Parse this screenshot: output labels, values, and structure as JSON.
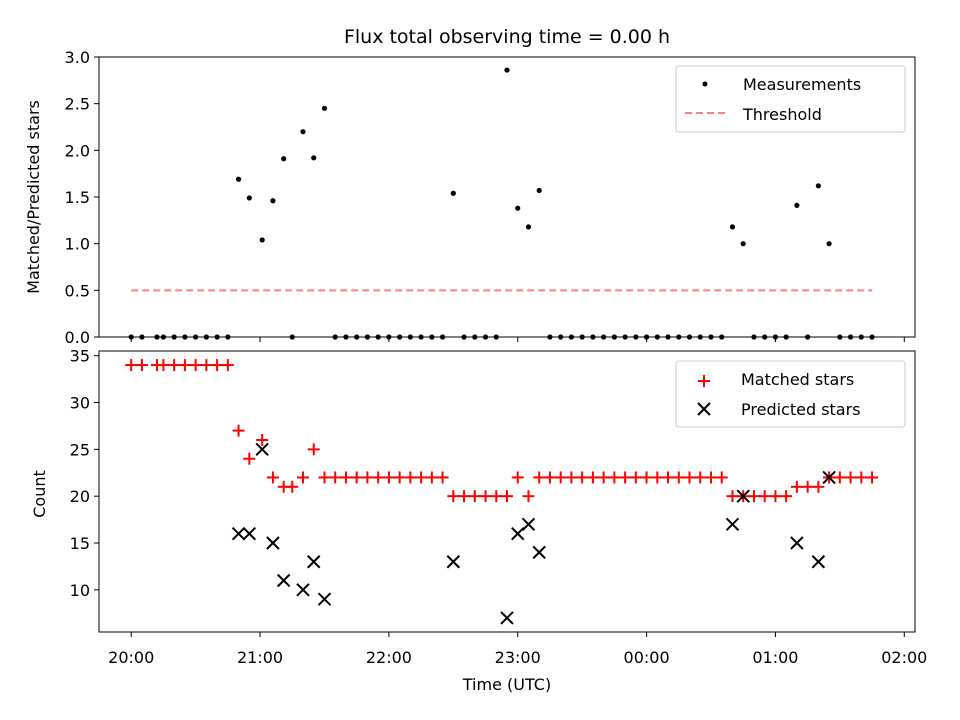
{
  "chart_data": [
    {
      "type": "scatter",
      "title": "Flux total observing time = 0.00 h",
      "xlabel": "",
      "ylabel": "Matched/Predicted stars",
      "ylim": [
        0,
        3.0
      ],
      "xlim": [
        "19:45",
        "02:05"
      ],
      "yticks": [
        "0.0",
        "0.5",
        "1.0",
        "1.5",
        "2.0",
        "2.5",
        "3.0"
      ],
      "legend_position": "top-right",
      "series": [
        {
          "name": "Measurements",
          "color": "#000000",
          "marker": "dot",
          "points": [
            [
              "20:00",
              0
            ],
            [
              "20:05",
              0
            ],
            [
              "20:12",
              0
            ],
            [
              "20:15",
              0
            ],
            [
              "20:20",
              0
            ],
            [
              "20:25",
              0
            ],
            [
              "20:30",
              0
            ],
            [
              "20:35",
              0
            ],
            [
              "20:40",
              0
            ],
            [
              "20:45",
              0
            ],
            [
              "20:50",
              1.69
            ],
            [
              "20:55",
              1.49
            ],
            [
              "21:01",
              1.04
            ],
            [
              "21:06",
              1.46
            ],
            [
              "21:11",
              1.91
            ],
            [
              "21:15",
              0
            ],
            [
              "21:20",
              2.2
            ],
            [
              "21:25",
              1.92
            ],
            [
              "21:30",
              2.45
            ],
            [
              "21:35",
              0
            ],
            [
              "21:40",
              0
            ],
            [
              "21:45",
              0
            ],
            [
              "21:50",
              0
            ],
            [
              "21:55",
              0
            ],
            [
              "22:00",
              0
            ],
            [
              "22:05",
              0
            ],
            [
              "22:10",
              0
            ],
            [
              "22:15",
              0
            ],
            [
              "22:20",
              0
            ],
            [
              "22:25",
              0
            ],
            [
              "22:30",
              1.54
            ],
            [
              "22:35",
              0
            ],
            [
              "22:40",
              0
            ],
            [
              "22:45",
              0
            ],
            [
              "22:50",
              0
            ],
            [
              "22:55",
              2.86
            ],
            [
              "23:00",
              1.38
            ],
            [
              "23:05",
              1.18
            ],
            [
              "23:10",
              1.57
            ],
            [
              "23:15",
              0
            ],
            [
              "23:20",
              0
            ],
            [
              "23:25",
              0
            ],
            [
              "23:30",
              0
            ],
            [
              "23:35",
              0
            ],
            [
              "23:40",
              0
            ],
            [
              "23:45",
              0
            ],
            [
              "23:50",
              0
            ],
            [
              "23:55",
              0
            ],
            [
              "00:00",
              0
            ],
            [
              "00:05",
              0
            ],
            [
              "00:10",
              0
            ],
            [
              "00:15",
              0
            ],
            [
              "00:20",
              0
            ],
            [
              "00:25",
              0
            ],
            [
              "00:30",
              0
            ],
            [
              "00:35",
              0
            ],
            [
              "00:40",
              1.18
            ],
            [
              "00:45",
              1.0
            ],
            [
              "00:50",
              0
            ],
            [
              "00:55",
              0
            ],
            [
              "01:00",
              0
            ],
            [
              "01:05",
              0
            ],
            [
              "01:10",
              1.41
            ],
            [
              "01:15",
              0
            ],
            [
              "01:20",
              1.62
            ],
            [
              "01:25",
              1.0
            ],
            [
              "01:30",
              0
            ],
            [
              "01:35",
              0
            ],
            [
              "01:40",
              0
            ],
            [
              "01:45",
              0
            ]
          ]
        },
        {
          "name": "Threshold",
          "color": "#ff7f7f",
          "style": "dashed-line",
          "points": [
            [
              "20:00",
              0.5
            ],
            [
              "01:45",
              0.5
            ]
          ]
        }
      ]
    },
    {
      "type": "scatter",
      "title": "",
      "xlabel": "Time (UTC)",
      "ylabel": "Count",
      "ylim": [
        5.5,
        35.5
      ],
      "xlim": [
        "19:45",
        "02:05"
      ],
      "yticks": [
        "10",
        "15",
        "20",
        "25",
        "30",
        "35"
      ],
      "xticks": [
        "20:00",
        "21:00",
        "22:00",
        "23:00",
        "00:00",
        "01:00",
        "02:00"
      ],
      "legend_position": "top-right",
      "series": [
        {
          "name": "Matched stars",
          "color": "#ff0000",
          "marker": "plus",
          "points": [
            [
              "20:00",
              34
            ],
            [
              "20:05",
              34
            ],
            [
              "20:12",
              34
            ],
            [
              "20:15",
              34
            ],
            [
              "20:20",
              34
            ],
            [
              "20:25",
              34
            ],
            [
              "20:30",
              34
            ],
            [
              "20:35",
              34
            ],
            [
              "20:40",
              34
            ],
            [
              "20:45",
              34
            ],
            [
              "20:50",
              27
            ],
            [
              "20:55",
              24
            ],
            [
              "21:01",
              26
            ],
            [
              "21:06",
              22
            ],
            [
              "21:11",
              21
            ],
            [
              "21:15",
              21
            ],
            [
              "21:20",
              22
            ],
            [
              "21:25",
              25
            ],
            [
              "21:30",
              22
            ],
            [
              "21:35",
              22
            ],
            [
              "21:40",
              22
            ],
            [
              "21:45",
              22
            ],
            [
              "21:50",
              22
            ],
            [
              "21:55",
              22
            ],
            [
              "22:00",
              22
            ],
            [
              "22:05",
              22
            ],
            [
              "22:10",
              22
            ],
            [
              "22:15",
              22
            ],
            [
              "22:20",
              22
            ],
            [
              "22:25",
              22
            ],
            [
              "22:30",
              20
            ],
            [
              "22:35",
              20
            ],
            [
              "22:40",
              20
            ],
            [
              "22:45",
              20
            ],
            [
              "22:50",
              20
            ],
            [
              "22:55",
              20
            ],
            [
              "23:00",
              22
            ],
            [
              "23:05",
              20
            ],
            [
              "23:10",
              22
            ],
            [
              "23:15",
              22
            ],
            [
              "23:20",
              22
            ],
            [
              "23:25",
              22
            ],
            [
              "23:30",
              22
            ],
            [
              "23:35",
              22
            ],
            [
              "23:40",
              22
            ],
            [
              "23:45",
              22
            ],
            [
              "23:50",
              22
            ],
            [
              "23:55",
              22
            ],
            [
              "00:00",
              22
            ],
            [
              "00:05",
              22
            ],
            [
              "00:10",
              22
            ],
            [
              "00:15",
              22
            ],
            [
              "00:20",
              22
            ],
            [
              "00:25",
              22
            ],
            [
              "00:30",
              22
            ],
            [
              "00:35",
              22
            ],
            [
              "00:40",
              20
            ],
            [
              "00:45",
              20
            ],
            [
              "00:50",
              20
            ],
            [
              "00:55",
              20
            ],
            [
              "01:00",
              20
            ],
            [
              "01:05",
              20
            ],
            [
              "01:10",
              21
            ],
            [
              "01:15",
              21
            ],
            [
              "01:20",
              21
            ],
            [
              "01:25",
              22
            ],
            [
              "01:30",
              22
            ],
            [
              "01:35",
              22
            ],
            [
              "01:40",
              22
            ],
            [
              "01:45",
              22
            ]
          ]
        },
        {
          "name": "Predicted stars",
          "color": "#000000",
          "marker": "x",
          "points": [
            [
              "20:50",
              16
            ],
            [
              "20:55",
              16
            ],
            [
              "21:01",
              25
            ],
            [
              "21:06",
              15
            ],
            [
              "21:11",
              11
            ],
            [
              "21:20",
              10
            ],
            [
              "21:25",
              13
            ],
            [
              "21:30",
              9
            ],
            [
              "22:30",
              13
            ],
            [
              "22:55",
              7
            ],
            [
              "23:00",
              16
            ],
            [
              "23:05",
              17
            ],
            [
              "23:10",
              14
            ],
            [
              "00:40",
              17
            ],
            [
              "00:45",
              20
            ],
            [
              "01:10",
              15
            ],
            [
              "01:20",
              13
            ],
            [
              "01:25",
              22
            ]
          ]
        }
      ]
    }
  ]
}
